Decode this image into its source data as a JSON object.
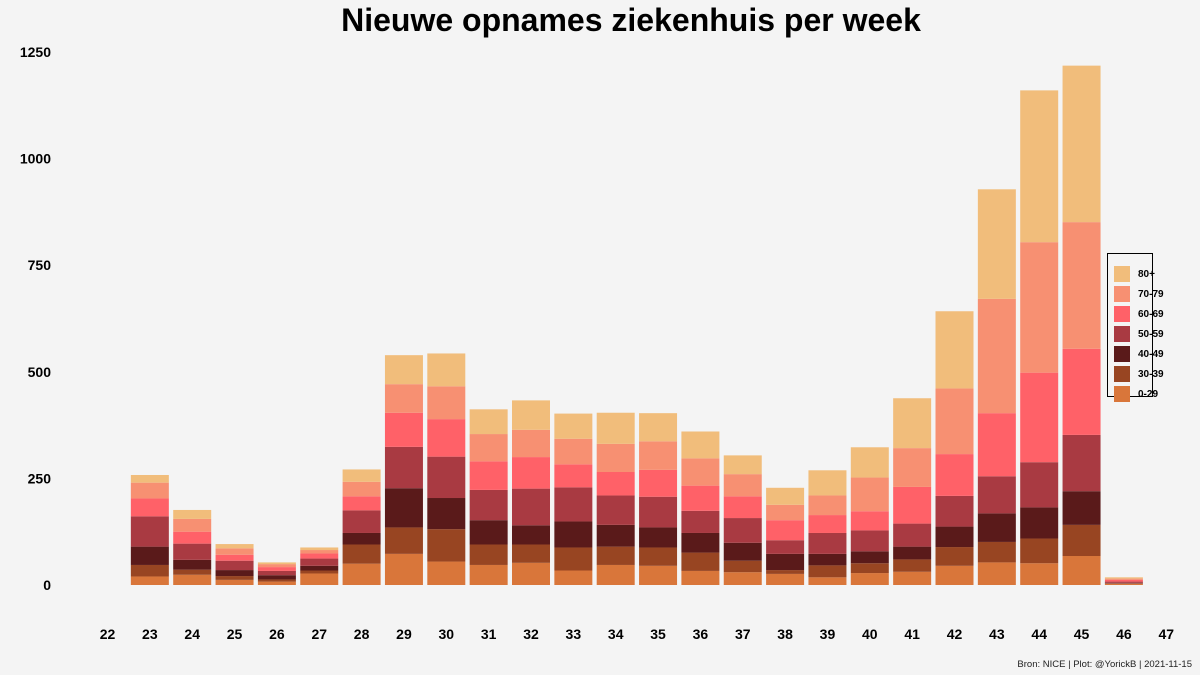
{
  "chart_data": {
    "type": "bar",
    "stacked": true,
    "title": "Nieuwe opnames ziekenhuis per week",
    "xlabel": "",
    "ylabel": "",
    "ylim": [
      0,
      1250
    ],
    "yticks": [
      0,
      250,
      500,
      750,
      1000,
      1250
    ],
    "xticks": [
      "22",
      "23",
      "24",
      "25",
      "26",
      "27",
      "28",
      "29",
      "30",
      "31",
      "32",
      "33",
      "34",
      "35",
      "36",
      "37",
      "38",
      "39",
      "40",
      "41",
      "42",
      "43",
      "44",
      "45",
      "46",
      "47"
    ],
    "grid": false,
    "legend_position": "right",
    "categories": [
      "23",
      "24",
      "25",
      "26",
      "27",
      "28",
      "29",
      "30",
      "31",
      "32",
      "33",
      "34",
      "35",
      "36",
      "37",
      "38",
      "39",
      "40",
      "41",
      "42",
      "43",
      "44",
      "45",
      "46"
    ],
    "series": [
      {
        "name": "0-29",
        "color": "#d9763a",
        "values": [
          20,
          24,
          12,
          8,
          27,
          50,
          73,
          55,
          47,
          52,
          34,
          47,
          45,
          33,
          30,
          26,
          18,
          28,
          31,
          45,
          53,
          51,
          68,
          3
        ]
      },
      {
        "name": "30-39",
        "color": "#984522",
        "values": [
          27,
          12,
          9,
          5,
          7,
          45,
          62,
          76,
          48,
          43,
          54,
          43,
          43,
          43,
          27,
          9,
          28,
          23,
          29,
          44,
          48,
          58,
          73,
          1
        ]
      },
      {
        "name": "40-49",
        "color": "#5a1a1a",
        "values": [
          43,
          23,
          14,
          10,
          11,
          27,
          92,
          73,
          57,
          45,
          61,
          51,
          47,
          46,
          42,
          38,
          27,
          28,
          30,
          48,
          67,
          73,
          79,
          1
        ]
      },
      {
        "name": "50-59",
        "color": "#a93a42",
        "values": [
          71,
          38,
          22,
          10,
          17,
          53,
          97,
          97,
          71,
          86,
          80,
          69,
          72,
          52,
          58,
          32,
          49,
          49,
          54,
          72,
          87,
          106,
          132,
          3
        ]
      },
      {
        "name": "60-69",
        "color": "#ff6168",
        "values": [
          42,
          28,
          14,
          9,
          12,
          33,
          80,
          88,
          67,
          74,
          54,
          55,
          63,
          59,
          51,
          47,
          42,
          45,
          86,
          98,
          148,
          210,
          202,
          4
        ]
      },
      {
        "name": "70-79",
        "color": "#f79072",
        "values": [
          37,
          30,
          15,
          7,
          8,
          34,
          67,
          77,
          64,
          64,
          60,
          66,
          67,
          64,
          52,
          36,
          46,
          79,
          91,
          154,
          268,
          306,
          297,
          3
        ]
      },
      {
        "name": "80+",
        "color": "#f1bd7b",
        "values": [
          18,
          21,
          10,
          4,
          6,
          29,
          68,
          77,
          58,
          69,
          59,
          73,
          66,
          63,
          44,
          40,
          59,
          71,
          117,
          181,
          257,
          356,
          367,
          3
        ]
      }
    ]
  },
  "caption": "Bron: NICE | Plot: @YorickB |  2021-11-15"
}
